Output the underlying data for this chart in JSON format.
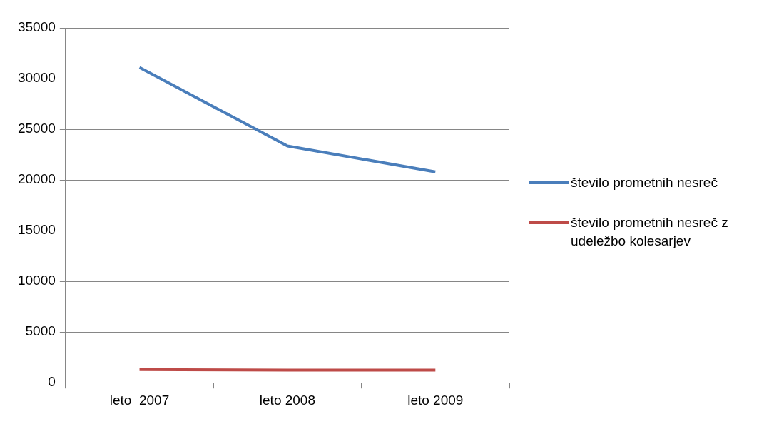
{
  "chart_data": {
    "type": "line",
    "categories": [
      "leto  2007",
      "leto 2008",
      "leto 2009"
    ],
    "series": [
      {
        "name": "število prometnih nesreč",
        "color": "#4a7ebb",
        "values": [
          31100,
          23350,
          20800
        ]
      },
      {
        "name": "število prometnih nesreč z udeležbo kolesarjev",
        "color": "#be4b48",
        "values": [
          1300,
          1240,
          1240
        ]
      }
    ],
    "ylim": [
      0,
      35000
    ],
    "yticks": [
      0,
      5000,
      10000,
      15000,
      20000,
      25000,
      30000,
      35000
    ],
    "grid": "y",
    "legend": "right",
    "marker": "none",
    "line_style": "solid"
  }
}
